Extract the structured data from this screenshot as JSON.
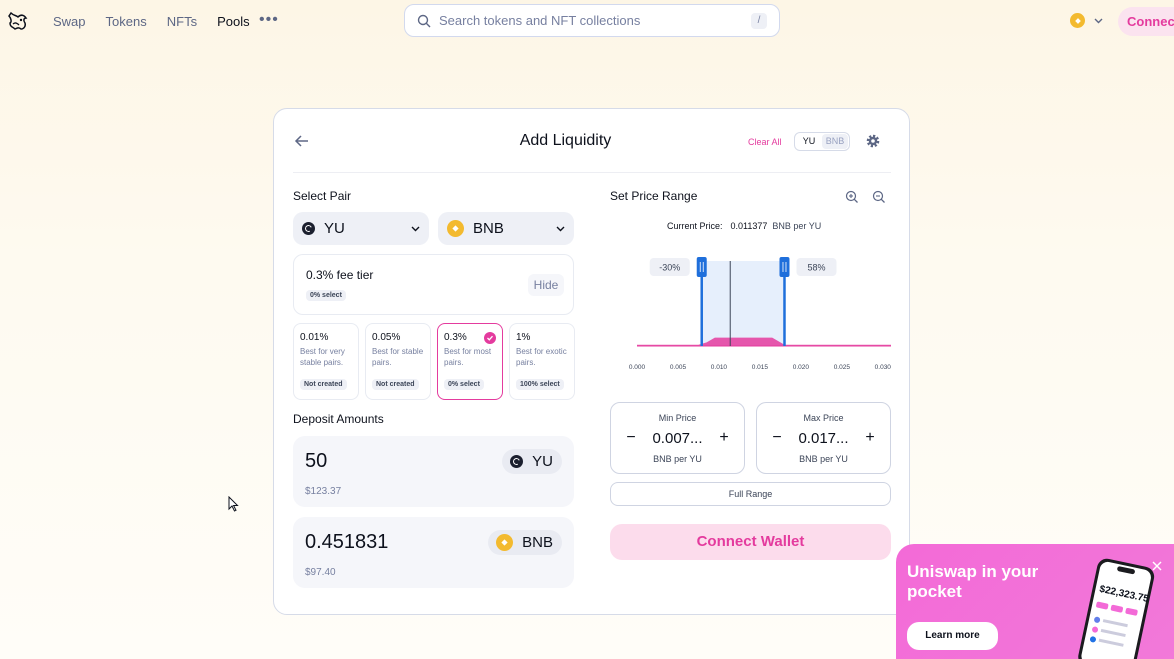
{
  "nav": {
    "links": [
      "Swap",
      "Tokens",
      "NFTs",
      "Pools"
    ],
    "search_placeholder": "Search tokens and NFT collections",
    "search_shortcut": "/",
    "connect_label": "Connect"
  },
  "card": {
    "title": "Add Liquidity",
    "clear_all": "Clear All",
    "toggle": [
      "YU",
      "BNB"
    ],
    "select_pair_title": "Select Pair",
    "token_a": "YU",
    "token_b": "BNB",
    "fee_tier": {
      "title": "0.3% fee tier",
      "select_badge": "0% select",
      "hide_label": "Hide"
    },
    "tiers": [
      {
        "pct": "0.01%",
        "desc": "Best for very stable pairs.",
        "badge": "Not created"
      },
      {
        "pct": "0.05%",
        "desc": "Best for stable pairs.",
        "badge": "Not created"
      },
      {
        "pct": "0.3%",
        "desc": "Best for most pairs.",
        "badge": "0% select"
      },
      {
        "pct": "1%",
        "desc": "Best for exotic pairs.",
        "badge": "100% select"
      }
    ],
    "deposit_title": "Deposit Amounts",
    "deposits": [
      {
        "amount": "50",
        "usd": "$123.37",
        "token": "YU"
      },
      {
        "amount": "0.451831",
        "usd": "$97.40",
        "token": "BNB"
      }
    ],
    "price_range": {
      "title": "Set Price Range",
      "current_label": "Current Price:",
      "current_value": "0.011377",
      "current_unit": "BNB per YU",
      "left_badge": "-30%",
      "right_badge": "58%",
      "min": {
        "label": "Min Price",
        "value": "0.007...",
        "unit": "BNB per YU"
      },
      "max": {
        "label": "Max Price",
        "value": "0.017...",
        "unit": "BNB per YU"
      },
      "full_range": "Full Range",
      "connect_wallet": "Connect Wallet"
    }
  },
  "chart_data": {
    "type": "area",
    "x_ticks": [
      "0.000",
      "0.005",
      "0.010",
      "0.015",
      "0.020",
      "0.025",
      "0.030"
    ],
    "xlim": [
      0,
      0.031
    ],
    "current_price": 0.011377,
    "selected_range": [
      0.0079,
      0.018
    ],
    "liquidity_x": [
      0.0,
      0.0075,
      0.0085,
      0.0095,
      0.0165,
      0.018,
      0.031
    ],
    "liquidity_y": [
      0.02,
      0.02,
      0.06,
      0.14,
      0.14,
      0.02,
      0.02
    ]
  },
  "promo": {
    "title": "Uniswap in your pocket",
    "button": "Learn more",
    "phone_balance": "$22,323.75"
  },
  "colors": {
    "accent": "#e43b9e",
    "range_fill": "#e6effc",
    "range_handle": "#1f6fdb",
    "promo_bg": "#f36ad7"
  }
}
